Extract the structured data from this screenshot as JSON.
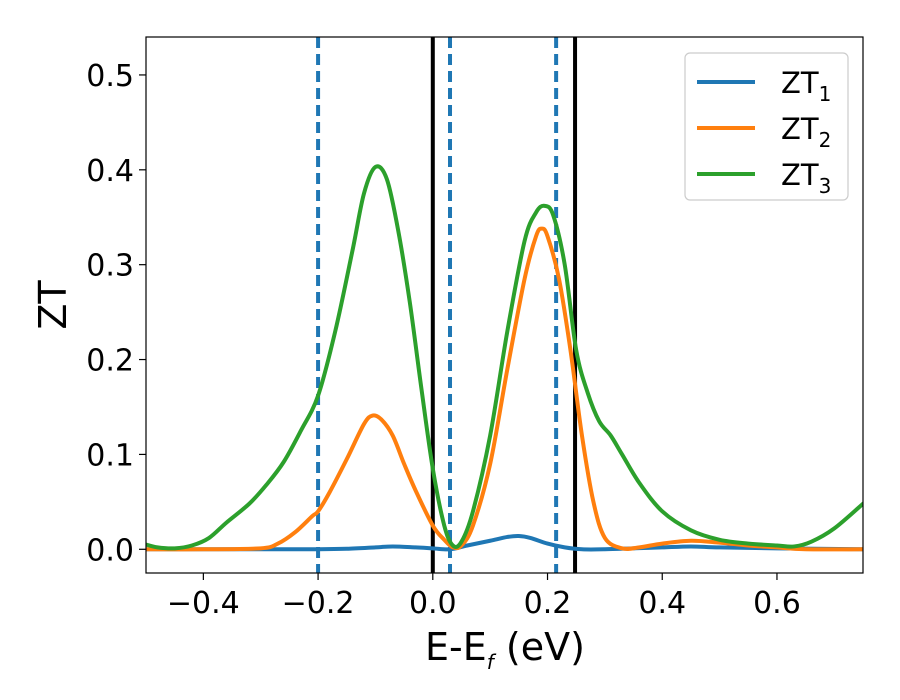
{
  "chart_data": {
    "type": "line",
    "xlabel_main": "E-E",
    "xlabel_sub": "f",
    "xlabel_unit": " (eV)",
    "ylabel": "ZT",
    "xlim": [
      -0.5,
      0.75
    ],
    "ylim": [
      -0.025,
      0.54
    ],
    "x_ticks": [
      -0.4,
      -0.2,
      0.0,
      0.2,
      0.4,
      0.6
    ],
    "x_tick_labels": [
      "−0.4",
      "−0.2",
      "0.0",
      "0.2",
      "0.4",
      "0.6"
    ],
    "y_ticks": [
      0.0,
      0.1,
      0.2,
      0.3,
      0.4,
      0.5
    ],
    "y_tick_labels": [
      "0.0",
      "0.1",
      "0.2",
      "0.3",
      "0.4",
      "0.5"
    ],
    "grid": false,
    "legend_position": "top-right",
    "series": [
      {
        "name": "ZT",
        "name_sub": "1",
        "color": "#1f77b4",
        "points": [
          [
            -0.5,
            0.0
          ],
          [
            -0.4,
            0.0
          ],
          [
            -0.3,
            0.0
          ],
          [
            -0.2,
            0.0
          ],
          [
            -0.15,
            0.0005
          ],
          [
            -0.1,
            0.002
          ],
          [
            -0.07,
            0.003
          ],
          [
            -0.03,
            0.002
          ],
          [
            0.0,
            0.001
          ],
          [
            0.03,
            0.0
          ],
          [
            0.06,
            0.004
          ],
          [
            0.1,
            0.009
          ],
          [
            0.13,
            0.013
          ],
          [
            0.15,
            0.014
          ],
          [
            0.17,
            0.012
          ],
          [
            0.2,
            0.006
          ],
          [
            0.23,
            0.002
          ],
          [
            0.26,
            0.0
          ],
          [
            0.3,
            0.0
          ],
          [
            0.35,
            0.001
          ],
          [
            0.4,
            0.002
          ],
          [
            0.45,
            0.003
          ],
          [
            0.5,
            0.002
          ],
          [
            0.6,
            0.001
          ],
          [
            0.75,
            0.0
          ]
        ]
      },
      {
        "name": "ZT",
        "name_sub": "2",
        "color": "#ff7f0e",
        "points": [
          [
            -0.5,
            0.0
          ],
          [
            -0.4,
            0.0
          ],
          [
            -0.3,
            0.001
          ],
          [
            -0.27,
            0.006
          ],
          [
            -0.24,
            0.018
          ],
          [
            -0.21,
            0.035
          ],
          [
            -0.2,
            0.04
          ],
          [
            -0.18,
            0.06
          ],
          [
            -0.15,
            0.095
          ],
          [
            -0.12,
            0.132
          ],
          [
            -0.105,
            0.141
          ],
          [
            -0.09,
            0.137
          ],
          [
            -0.07,
            0.12
          ],
          [
            -0.05,
            0.09
          ],
          [
            -0.03,
            0.062
          ],
          [
            0.0,
            0.025
          ],
          [
            0.02,
            0.01
          ],
          [
            0.035,
            0.002
          ],
          [
            0.05,
            0.004
          ],
          [
            0.07,
            0.025
          ],
          [
            0.1,
            0.09
          ],
          [
            0.13,
            0.19
          ],
          [
            0.16,
            0.285
          ],
          [
            0.18,
            0.33
          ],
          [
            0.19,
            0.338
          ],
          [
            0.2,
            0.33
          ],
          [
            0.22,
            0.285
          ],
          [
            0.24,
            0.21
          ],
          [
            0.26,
            0.12
          ],
          [
            0.28,
            0.05
          ],
          [
            0.3,
            0.012
          ],
          [
            0.33,
            0.001
          ],
          [
            0.36,
            0.002
          ],
          [
            0.4,
            0.006
          ],
          [
            0.45,
            0.009
          ],
          [
            0.5,
            0.007
          ],
          [
            0.55,
            0.004
          ],
          [
            0.6,
            0.002
          ],
          [
            0.65,
            0.0
          ],
          [
            0.75,
            0.0
          ]
        ]
      },
      {
        "name": "ZT",
        "name_sub": "3",
        "color": "#2ca02c",
        "points": [
          [
            -0.5,
            0.005
          ],
          [
            -0.48,
            0.002
          ],
          [
            -0.45,
            0.001
          ],
          [
            -0.42,
            0.004
          ],
          [
            -0.39,
            0.012
          ],
          [
            -0.36,
            0.028
          ],
          [
            -0.32,
            0.048
          ],
          [
            -0.29,
            0.068
          ],
          [
            -0.26,
            0.092
          ],
          [
            -0.23,
            0.125
          ],
          [
            -0.2,
            0.162
          ],
          [
            -0.17,
            0.23
          ],
          [
            -0.14,
            0.315
          ],
          [
            -0.12,
            0.375
          ],
          [
            -0.1,
            0.403
          ],
          [
            -0.08,
            0.39
          ],
          [
            -0.06,
            0.335
          ],
          [
            -0.04,
            0.26
          ],
          [
            -0.02,
            0.17
          ],
          [
            0.0,
            0.085
          ],
          [
            0.02,
            0.025
          ],
          [
            0.035,
            0.004
          ],
          [
            0.05,
            0.008
          ],
          [
            0.07,
            0.04
          ],
          [
            0.1,
            0.12
          ],
          [
            0.13,
            0.23
          ],
          [
            0.16,
            0.325
          ],
          [
            0.18,
            0.355
          ],
          [
            0.195,
            0.362
          ],
          [
            0.21,
            0.352
          ],
          [
            0.23,
            0.3
          ],
          [
            0.25,
            0.21
          ],
          [
            0.27,
            0.165
          ],
          [
            0.29,
            0.135
          ],
          [
            0.31,
            0.12
          ],
          [
            0.33,
            0.1
          ],
          [
            0.36,
            0.07
          ],
          [
            0.4,
            0.04
          ],
          [
            0.45,
            0.02
          ],
          [
            0.5,
            0.01
          ],
          [
            0.55,
            0.006
          ],
          [
            0.6,
            0.004
          ],
          [
            0.63,
            0.003
          ],
          [
            0.66,
            0.008
          ],
          [
            0.7,
            0.022
          ],
          [
            0.75,
            0.048
          ]
        ]
      }
    ],
    "vlines": [
      {
        "x": -0.2,
        "style": "dashed",
        "color": "#1f77b4"
      },
      {
        "x": 0.0,
        "style": "solid",
        "color": "#000000"
      },
      {
        "x": 0.03,
        "style": "dashed",
        "color": "#1f77b4"
      },
      {
        "x": 0.215,
        "style": "dashed",
        "color": "#1f77b4"
      },
      {
        "x": 0.248,
        "style": "solid",
        "color": "#000000"
      }
    ]
  }
}
